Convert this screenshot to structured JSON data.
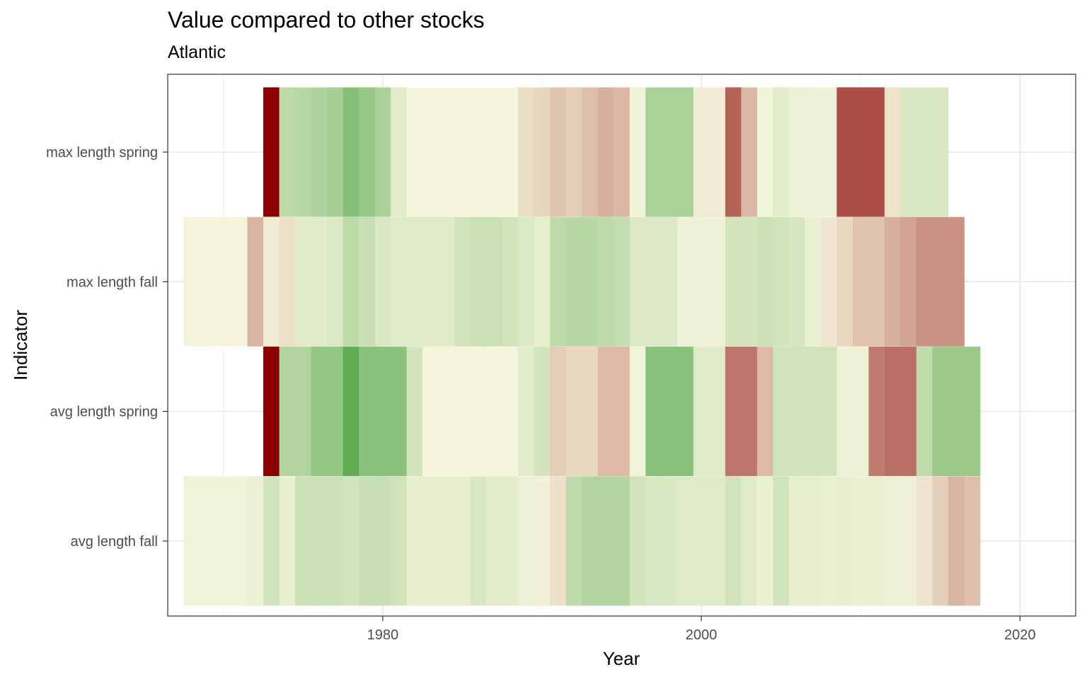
{
  "chart_data": {
    "type": "heatmap",
    "title": "Value compared to other stocks",
    "subtitle": "Atlantic",
    "xlabel": "Year",
    "ylabel": "Indicator",
    "xlim": [
      1966.5,
      2023.5
    ],
    "x_ticks": [
      1980,
      2000,
      2020
    ],
    "grid": true,
    "legend": "none",
    "indicators": [
      "max length spring",
      "max length fall",
      "avg length spring",
      "avg length fall"
    ],
    "color_scale": {
      "low": "#8b0000",
      "mid": "#f5f5dc",
      "high": "#3a9a32",
      "range": [
        -1,
        1
      ]
    },
    "series": [
      {
        "name": "max length spring",
        "start_year": 1973,
        "values": [
          -1.0,
          0.3,
          0.33,
          0.38,
          0.42,
          0.6,
          0.5,
          0.4,
          0.1,
          0.0,
          0.0,
          0.0,
          0.0,
          0.0,
          0.0,
          0.0,
          -0.1,
          -0.13,
          -0.2,
          -0.16,
          -0.22,
          -0.28,
          -0.25,
          0.02,
          0.4,
          0.4,
          0.4,
          -0.04,
          -0.04,
          -0.6,
          -0.25,
          0.02,
          0.1,
          0.05,
          0.03,
          0.03,
          -0.68,
          -0.68,
          -0.68,
          -0.07,
          0.15,
          0.15,
          0.15
        ]
      },
      {
        "name": "max length fall",
        "start_year": 1968,
        "values": [
          0.01,
          0.01,
          0.01,
          0.01,
          -0.26,
          -0.04,
          -0.08,
          0.11,
          0.11,
          0.14,
          0.3,
          0.24,
          0.15,
          0.11,
          0.11,
          0.11,
          0.11,
          0.2,
          0.23,
          0.23,
          0.2,
          0.14,
          0.08,
          0.3,
          0.33,
          0.33,
          0.3,
          0.26,
          0.13,
          0.13,
          0.13,
          0.03,
          0.03,
          0.03,
          0.18,
          0.18,
          0.23,
          0.2,
          0.16,
          0.06,
          -0.06,
          -0.12,
          -0.2,
          -0.2,
          -0.28,
          -0.33,
          -0.4,
          -0.4,
          -0.4
        ]
      },
      {
        "name": "avg length spring",
        "start_year": 1973,
        "values": [
          -1.0,
          0.36,
          0.36,
          0.52,
          0.52,
          0.8,
          0.57,
          0.57,
          0.57,
          0.18,
          0.0,
          0.0,
          0.0,
          0.0,
          0.0,
          0.0,
          0.1,
          0.18,
          -0.16,
          -0.12,
          -0.12,
          -0.24,
          -0.24,
          0.02,
          0.57,
          0.57,
          0.57,
          0.12,
          0.12,
          -0.52,
          -0.52,
          -0.24,
          0.2,
          0.2,
          0.2,
          0.2,
          0.04,
          0.04,
          -0.5,
          -0.55,
          -0.55,
          0.28,
          0.48,
          0.48,
          0.48
        ]
      },
      {
        "name": "avg length fall",
        "start_year": 1968,
        "values": [
          0.02,
          0.02,
          0.02,
          0.02,
          0.05,
          0.2,
          0.07,
          0.22,
          0.23,
          0.23,
          0.2,
          0.24,
          0.24,
          0.2,
          0.08,
          0.08,
          0.08,
          0.08,
          0.15,
          0.1,
          0.1,
          0.04,
          -0.02,
          -0.08,
          0.29,
          0.36,
          0.36,
          0.36,
          0.2,
          0.15,
          0.15,
          0.12,
          0.12,
          0.12,
          0.2,
          0.12,
          0.06,
          0.2,
          0.08,
          0.08,
          0.06,
          0.07,
          0.06,
          0.06,
          0.04,
          0.04,
          -0.07,
          -0.16,
          -0.26,
          -0.22
        ]
      }
    ]
  }
}
